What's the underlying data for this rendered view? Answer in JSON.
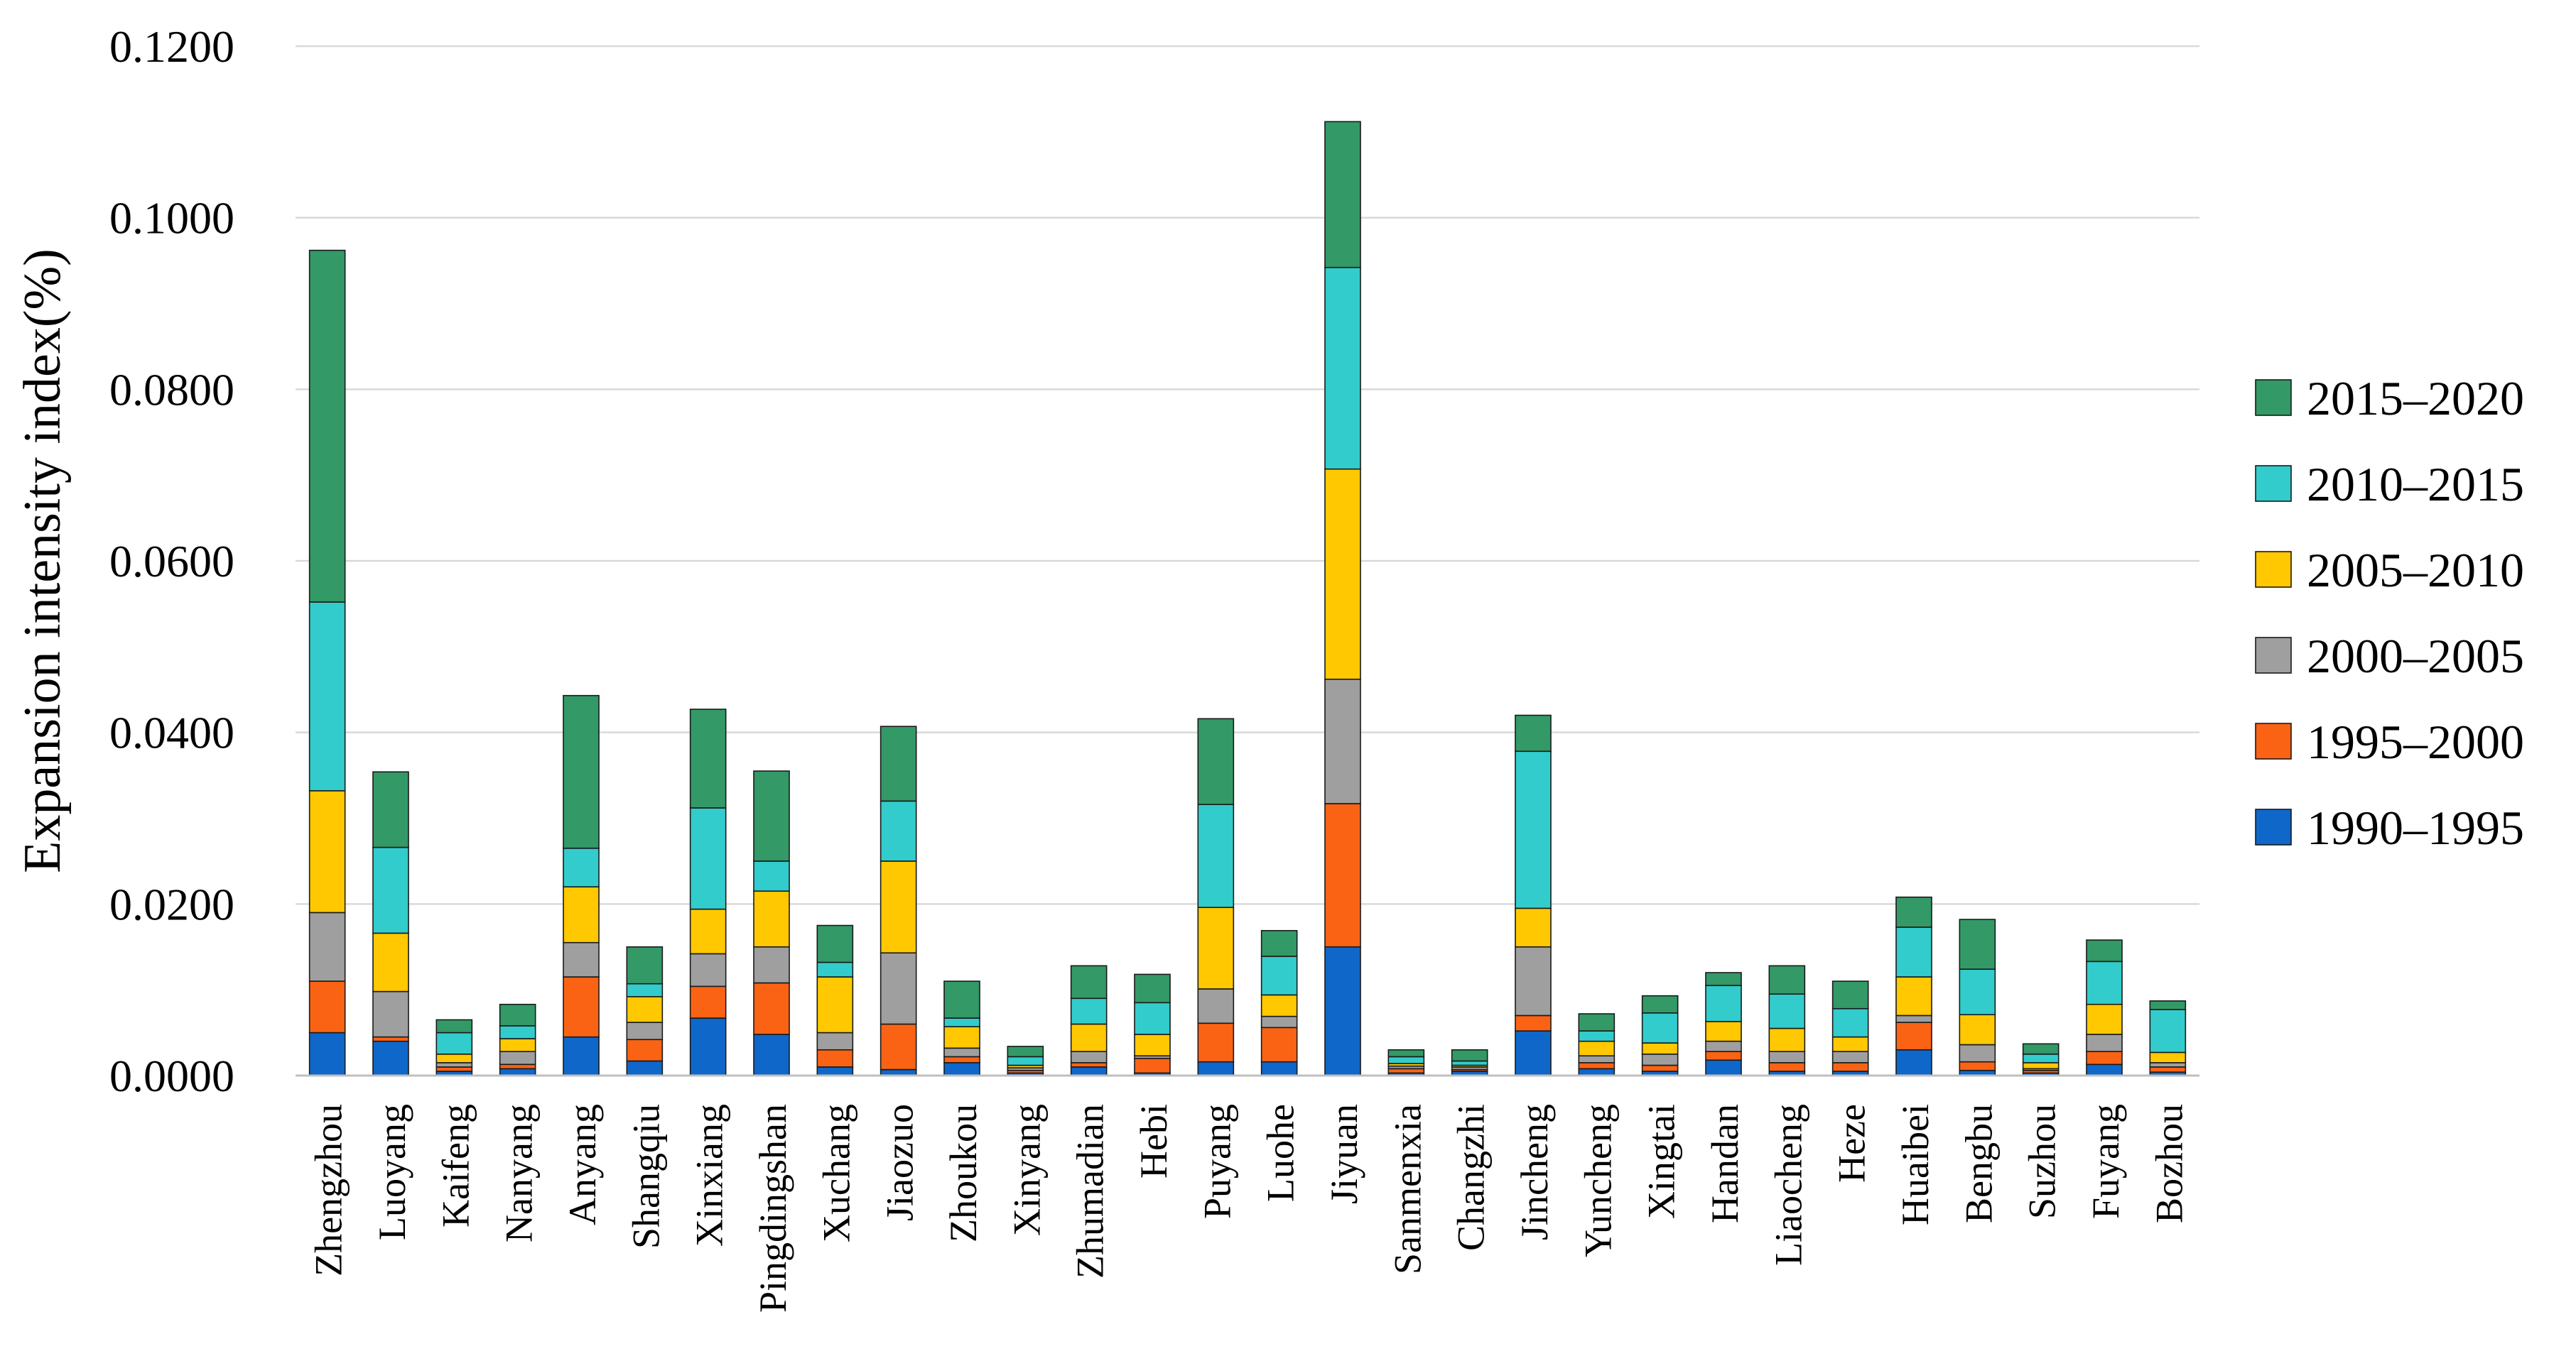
{
  "chart_data": {
    "type": "bar",
    "stacked": true,
    "title": "",
    "xlabel": "",
    "ylabel": "Expansion intensity index(%)",
    "ylim": [
      0,
      0.12
    ],
    "yticks": [
      "0.0000",
      "0.0200",
      "0.0400",
      "0.0600",
      "0.0800",
      "0.1000",
      "0.1200"
    ],
    "ytick_values": [
      0,
      0.02,
      0.04,
      0.06,
      0.08,
      0.1,
      0.12
    ],
    "grid": true,
    "legend_position": "right",
    "categories": [
      "Zhengzhou",
      "Luoyang",
      "Kaifeng",
      "Nanyang",
      "Anyang",
      "Shangqiu",
      "Xinxiang",
      "Pingdingshan",
      "Xuchang",
      "Jiaozuo",
      "Zhoukou",
      "Xinyang",
      "Zhumadian",
      "Hebi",
      "Puyang",
      "Luohe",
      "Jiyuan",
      "Sanmenxia",
      "Changzhi",
      "Jincheng",
      "Yuncheng",
      "Xingtai",
      "Handan",
      "Liaocheng",
      "Heze",
      "Huaibei",
      "Bengbu",
      "Suzhou",
      "Fuyang",
      "Bozhou"
    ],
    "series": [
      {
        "name": "1990–1995",
        "color": "#0f67c9",
        "values": [
          0.005,
          0.004,
          0.0005,
          0.0008,
          0.0045,
          0.0017,
          0.0067,
          0.0048,
          0.001,
          0.0007,
          0.0015,
          0.0003,
          0.001,
          0.0003,
          0.0016,
          0.0016,
          0.015,
          0.0003,
          0.0005,
          0.0052,
          0.0008,
          0.0005,
          0.0018,
          0.0005,
          0.0005,
          0.003,
          0.0006,
          0.0003,
          0.0013,
          0.0004
        ]
      },
      {
        "name": "1995–2000",
        "color": "#fb6314",
        "values": [
          0.006,
          0.0005,
          0.0005,
          0.0005,
          0.007,
          0.0025,
          0.0037,
          0.006,
          0.002,
          0.0053,
          0.0007,
          0.0003,
          0.0005,
          0.0017,
          0.0045,
          0.004,
          0.0167,
          0.0005,
          0.0002,
          0.0018,
          0.0007,
          0.0007,
          0.001,
          0.001,
          0.001,
          0.0032,
          0.001,
          0.0003,
          0.0015,
          0.0006
        ]
      },
      {
        "name": "2000–2005",
        "color": "#9f9f9f",
        "values": [
          0.008,
          0.0053,
          0.0005,
          0.0015,
          0.004,
          0.002,
          0.0038,
          0.0042,
          0.002,
          0.0083,
          0.001,
          0.0003,
          0.0013,
          0.0003,
          0.004,
          0.0013,
          0.0145,
          0.0003,
          0.0003,
          0.008,
          0.0008,
          0.0013,
          0.0012,
          0.0013,
          0.0013,
          0.0008,
          0.002,
          0.0002,
          0.002,
          0.0005
        ]
      },
      {
        "name": "2005–2010",
        "color": "#ffc800",
        "values": [
          0.0142,
          0.0068,
          0.001,
          0.0015,
          0.0065,
          0.003,
          0.0052,
          0.0065,
          0.0065,
          0.0107,
          0.0025,
          0.0003,
          0.0032,
          0.0025,
          0.0095,
          0.0025,
          0.0245,
          0.0003,
          0.0002,
          0.0045,
          0.0017,
          0.0013,
          0.0023,
          0.0027,
          0.0017,
          0.0045,
          0.0035,
          0.0007,
          0.0035,
          0.0012
        ]
      },
      {
        "name": "2010–2015",
        "color": "#33cccc",
        "values": [
          0.022,
          0.01,
          0.0025,
          0.0015,
          0.0045,
          0.0015,
          0.0118,
          0.0035,
          0.0017,
          0.007,
          0.001,
          0.001,
          0.003,
          0.0037,
          0.012,
          0.0045,
          0.0235,
          0.0008,
          0.0005,
          0.0183,
          0.0012,
          0.0035,
          0.0042,
          0.004,
          0.0033,
          0.0058,
          0.0053,
          0.001,
          0.005,
          0.005
        ]
      },
      {
        "name": "2015–2020",
        "color": "#339966",
        "values": [
          0.041,
          0.0088,
          0.0015,
          0.0025,
          0.0178,
          0.0043,
          0.0115,
          0.0105,
          0.0043,
          0.0087,
          0.0043,
          0.0012,
          0.0038,
          0.0033,
          0.01,
          0.003,
          0.017,
          0.0008,
          0.0013,
          0.0042,
          0.002,
          0.002,
          0.0015,
          0.0033,
          0.0032,
          0.0035,
          0.0058,
          0.0012,
          0.0025,
          0.001
        ]
      }
    ]
  }
}
